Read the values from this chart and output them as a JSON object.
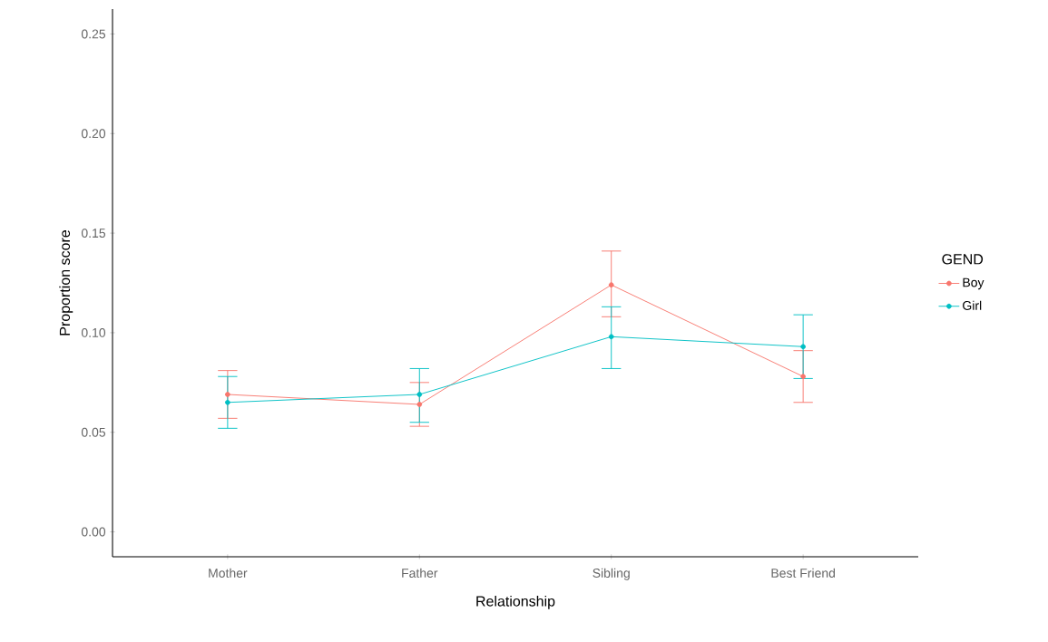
{
  "chart_data": {
    "type": "line",
    "xlabel": "Relationship",
    "ylabel": "Proportion score",
    "legend_title": "GEND",
    "categories": [
      "Mother",
      "Father",
      "Sibling",
      "Best Friend"
    ],
    "series": [
      {
        "name": "Boy",
        "color": "#f8766d",
        "values": [
          0.069,
          0.064,
          0.124,
          0.078
        ],
        "errors": [
          [
            0.057,
            0.081
          ],
          [
            0.053,
            0.075
          ],
          [
            0.108,
            0.141
          ],
          [
            0.065,
            0.091
          ]
        ]
      },
      {
        "name": "Girl",
        "color": "#00bfc4",
        "values": [
          0.065,
          0.069,
          0.098,
          0.093
        ],
        "errors": [
          [
            0.052,
            0.078
          ],
          [
            0.055,
            0.082
          ],
          [
            0.082,
            0.113
          ],
          [
            0.077,
            0.109
          ]
        ]
      }
    ],
    "ylim": [
      -0.0125,
      0.2625
    ],
    "yticks": [
      {
        "value": 0,
        "label": "0.00"
      },
      {
        "value": 0.05,
        "label": "0.05"
      },
      {
        "value": 0.1,
        "label": "0.10"
      },
      {
        "value": 0.15,
        "label": "0.15"
      },
      {
        "value": 0.2,
        "label": "0.20"
      },
      {
        "value": 0.25,
        "label": "0.25"
      }
    ],
    "grid": false,
    "legend": "right",
    "marker": "circle",
    "line_style": "solid"
  }
}
